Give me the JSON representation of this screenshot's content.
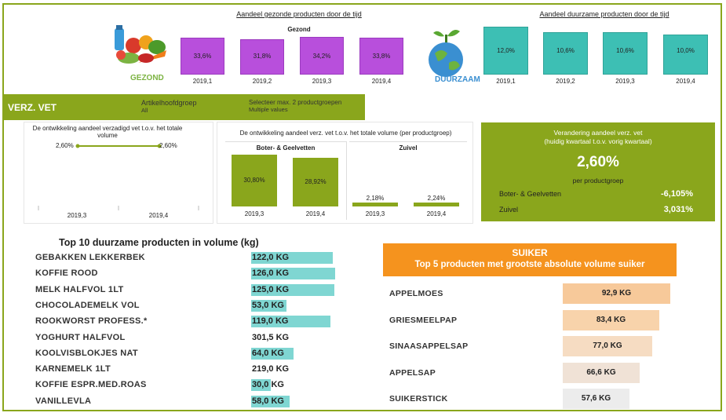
{
  "gezond": {
    "title": "Aandeel gezonde producten door de tijd",
    "legend": "Gezond",
    "logo_label": "GEZOND",
    "bars": [
      {
        "label": "2019,1",
        "value": "33,6%",
        "pct": 33.6
      },
      {
        "label": "2019,2",
        "value": "31,8%",
        "pct": 31.8
      },
      {
        "label": "2019,3",
        "value": "34,2%",
        "pct": 34.2
      },
      {
        "label": "2019,4",
        "value": "33,8%",
        "pct": 33.8
      }
    ]
  },
  "duurzaam": {
    "title": "Aandeel duurzame producten door de tijd",
    "logo_label": "DUURZAAM",
    "bars": [
      {
        "label": "2019,1",
        "value": "12,0%",
        "pct": 12.0
      },
      {
        "label": "2019,2",
        "value": "10,6%",
        "pct": 10.6
      },
      {
        "label": "2019,3",
        "value": "10,6%",
        "pct": 10.6
      },
      {
        "label": "2019,4",
        "value": "10,0%",
        "pct": 10.0
      }
    ]
  },
  "filterbar": {
    "section_title": "VERZ. VET",
    "filter1_label": "Artikelhoofdgroep",
    "filter1_value": "All",
    "filter2_label": "Selecteer max. 2 productgroepen",
    "filter2_value": "Multiple values"
  },
  "line_chart": {
    "title": "De ontwikkeling aandeel verzadigd vet t.o.v. het totale volume",
    "points": [
      {
        "x": "2019,3",
        "label": "2,60%"
      },
      {
        "x": "2019,4",
        "label": "2,60%"
      }
    ]
  },
  "group_chart": {
    "title": "De ontwikkeling aandeel verz. vet t.o.v. het totale volume (per productgroep)",
    "groups": [
      {
        "name": "Boter- & Geelvetten",
        "bars": [
          {
            "x": "2019,3",
            "label": "30,80%",
            "pct": 30.8
          },
          {
            "x": "2019,4",
            "label": "28,92%",
            "pct": 28.92
          }
        ]
      },
      {
        "name": "Zuivel",
        "bars": [
          {
            "x": "2019,3",
            "label": "2,18%",
            "pct": 2.18
          },
          {
            "x": "2019,4",
            "label": "2,24%",
            "pct": 2.24
          }
        ]
      }
    ]
  },
  "kpi": {
    "title_line1": "Verandering aandeel verz. vet",
    "title_line2": "(huidig kwartaal t.o.v. vorig kwartaal)",
    "value": "2,60%",
    "sub": "per productgroep",
    "rows": [
      {
        "name": "Boter- & Geelvetten",
        "value": "-6,105%"
      },
      {
        "name": "Zuivel",
        "value": "3,031%"
      }
    ]
  },
  "top10": {
    "title": "Top 10 duurzame producten in volume (kg)",
    "items": [
      {
        "name": "GEBAKKEN LEKKERBEK",
        "value": "122,0 KG",
        "kg": 122.0
      },
      {
        "name": "KOFFIE ROOD",
        "value": "126,0 KG",
        "kg": 126.0
      },
      {
        "name": "MELK HALFVOL 1LT",
        "value": "125,0 KG",
        "kg": 125.0
      },
      {
        "name": "CHOCOLADEMELK VOL",
        "value": "53,0 KG",
        "kg": 53.0
      },
      {
        "name": "ROOKWORST PROFESS.*",
        "value": "119,0 KG",
        "kg": 119.0
      },
      {
        "name": "YOGHURT HALFVOL",
        "value": "301,5 KG",
        "kg": 301.5
      },
      {
        "name": "KOOLVISBLOKJES NAT",
        "value": "64,0 KG",
        "kg": 64.0
      },
      {
        "name": "KARNEMELK 1LT",
        "value": "219,0 KG",
        "kg": 219.0
      },
      {
        "name": "KOFFIE ESPR.MED.ROAS",
        "value": "30,0 KG",
        "kg": 30.0
      },
      {
        "name": "VANILLEVLA",
        "value": "58,0 KG",
        "kg": 58.0
      }
    ]
  },
  "suiker": {
    "title": "SUIKER",
    "subtitle": "Top 5 producten met grootste absolute volume suiker",
    "items": [
      {
        "name": "APPELMOES",
        "value": "92,9 KG",
        "kg": 92.9,
        "color": "#f7c99a"
      },
      {
        "name": "GRIESMEELPAP",
        "value": "83,4 KG",
        "kg": 83.4,
        "color": "#f8d3ab"
      },
      {
        "name": "SINAASAPPELSAP",
        "value": "77,0 KG",
        "kg": 77.0,
        "color": "#f6dcc2"
      },
      {
        "name": "APPELSAP",
        "value": "66,6 KG",
        "kg": 66.6,
        "color": "#f0e2d6"
      },
      {
        "name": "SUIKERSTICK",
        "value": "57,6 KG",
        "kg": 57.6,
        "color": "#ececec"
      }
    ]
  },
  "colors": {
    "olive": "#8aa61c",
    "purple": "#b84fdc",
    "teal": "#3dbfb4",
    "orange": "#f5931e"
  }
}
